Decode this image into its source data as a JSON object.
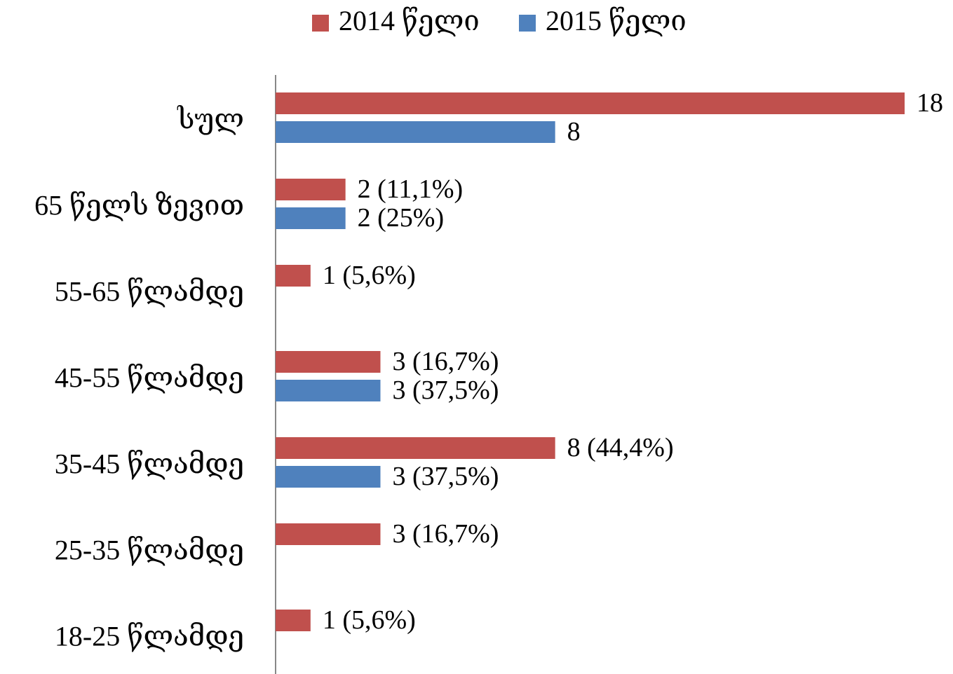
{
  "chart_data": {
    "type": "bar",
    "orientation": "horizontal",
    "categories": [
      "სულ",
      "65 წელს ზევით",
      "55-65 წლამდე",
      "45-55 წლამდე",
      "35-45 წლამდე",
      "25-35 წლამდე",
      "18-25 წლამდე"
    ],
    "series": [
      {
        "name": "2014 წელი",
        "color": "#c0504d",
        "values": [
          18,
          2,
          1,
          3,
          8,
          3,
          1
        ],
        "value_labels": [
          "18",
          "2 (11,1%)",
          "1 (5,6%)",
          "3 (16,7%)",
          "8 (44,4%)",
          "3 (16,7%)",
          "1 (5,6%)"
        ]
      },
      {
        "name": "2015 წელი",
        "color": "#4f81bd",
        "values": [
          8,
          2,
          null,
          3,
          3,
          null,
          null
        ],
        "value_labels": [
          "8",
          "2 (25%)",
          null,
          "3 (37,5%)",
          "3 (37,5%)",
          null,
          null
        ]
      }
    ],
    "xlim": [
      0,
      18
    ],
    "legend": "top"
  }
}
